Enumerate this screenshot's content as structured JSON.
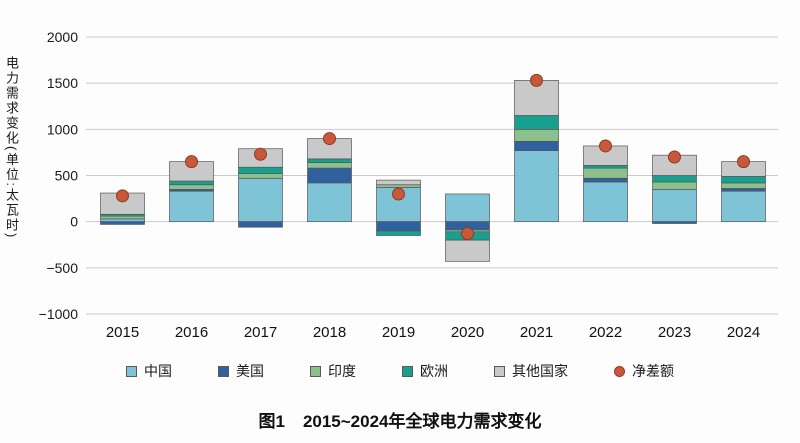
{
  "caption": {
    "figure_label": "图1",
    "text": "2015~2024年全球电力需求变化"
  },
  "chart_data": {
    "type": "bar",
    "stacked": true,
    "title": "图1 2015~2024年全球电力需求变化",
    "ylabel": "电力需求变化(单位:太瓦时)",
    "xlabel": "",
    "unit": "太瓦时",
    "ylim": [
      -1000,
      2000
    ],
    "yticks": [
      2000,
      1500,
      1000,
      500,
      0,
      -500,
      -1000
    ],
    "grid": "horizontal",
    "legend_position": "bottom",
    "categories": [
      "2015",
      "2016",
      "2017",
      "2018",
      "2019",
      "2020",
      "2021",
      "2022",
      "2023",
      "2024"
    ],
    "series": [
      {
        "key": "china",
        "name": "中国",
        "color": "#7fc4d6",
        "values": [
          30,
          330,
          470,
          420,
          370,
          300,
          770,
          430,
          350,
          330
        ]
      },
      {
        "key": "usa",
        "name": "美国",
        "color": "#31609f",
        "values": [
          -30,
          20,
          -60,
          160,
          -100,
          -90,
          100,
          40,
          -20,
          30
        ]
      },
      {
        "key": "india",
        "name": "印度",
        "color": "#8cc08c",
        "values": [
          30,
          50,
          50,
          60,
          30,
          -20,
          130,
          110,
          80,
          60
        ]
      },
      {
        "key": "europe",
        "name": "欧洲",
        "color": "#17a08d",
        "values": [
          20,
          40,
          70,
          40,
          -50,
          -90,
          150,
          30,
          70,
          70
        ]
      },
      {
        "key": "others",
        "name": "其他国家",
        "color": "#c9c9c9",
        "values": [
          230,
          210,
          200,
          220,
          50,
          -230,
          380,
          210,
          220,
          160
        ]
      }
    ],
    "net": {
      "key": "net",
      "name": "净差额",
      "marker": "dot",
      "color": "#c9573a",
      "values": [
        280,
        650,
        730,
        900,
        300,
        -130,
        1530,
        820,
        700,
        650
      ]
    }
  }
}
